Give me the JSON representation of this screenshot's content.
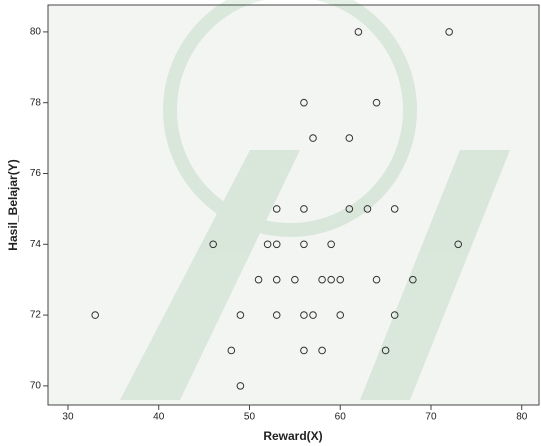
{
  "chart_data": {
    "type": "scatter",
    "x_label": "Reward(X)",
    "y_label": "Hasil_Belajar(Y)",
    "x": [
      62,
      72,
      56,
      64,
      57,
      61,
      53,
      56,
      61,
      63,
      66,
      46,
      52,
      53,
      56,
      59,
      73,
      51,
      53,
      55,
      58,
      59,
      60,
      64,
      68,
      33,
      49,
      53,
      56,
      57,
      60,
      66,
      48,
      56,
      58,
      65,
      49
    ],
    "values": [
      80,
      80,
      78,
      78,
      77,
      77,
      75,
      75,
      75,
      75,
      75,
      74,
      74,
      74,
      74,
      74,
      74,
      73,
      73,
      73,
      73,
      73,
      73,
      73,
      73,
      72,
      72,
      72,
      72,
      72,
      72,
      72,
      71,
      71,
      71,
      71,
      70
    ],
    "color": "#333333",
    "xlim": [
      27.8,
      81.9
    ],
    "xticks": [
      30,
      40,
      50,
      60,
      70,
      80
    ],
    "ylim": [
      69.46,
      80.76
    ],
    "yticks": [
      70,
      72,
      74,
      76,
      78,
      80
    ]
  }
}
